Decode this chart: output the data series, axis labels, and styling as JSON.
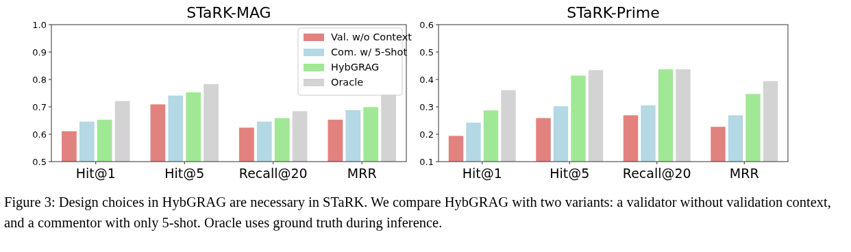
{
  "chart_data": [
    {
      "type": "bar",
      "title": "STaRK-MAG",
      "categories": [
        "Hit@1",
        "Hit@5",
        "Recall@20",
        "MRR"
      ],
      "ylim": [
        0.5,
        1.0
      ],
      "yticks": [
        {
          "value": 0.5,
          "label": "0.5"
        },
        {
          "value": 0.6,
          "label": "0.6"
        },
        {
          "value": 0.7,
          "label": "0.7"
        },
        {
          "value": 0.8,
          "label": "0.8"
        },
        {
          "value": 0.9,
          "label": "0.9"
        },
        {
          "value": 1.0,
          "label": "1.0"
        }
      ],
      "legend": "top right",
      "grid": false,
      "series": [
        {
          "name": "Val. w/o Context",
          "color": "#e2827f",
          "values": [
            0.611,
            0.709,
            0.624,
            0.653
          ]
        },
        {
          "name": "Com. w/ 5-Shot",
          "color": "#b4d8e4",
          "values": [
            0.646,
            0.741,
            0.646,
            0.688
          ]
        },
        {
          "name": "HybGRAG",
          "color": "#a1e896",
          "values": [
            0.653,
            0.753,
            0.659,
            0.699
          ]
        },
        {
          "name": "Oracle",
          "color": "#d3d3d3",
          "values": [
            0.721,
            0.783,
            0.684,
            0.748
          ]
        }
      ],
      "annotations": [
        "Figure 3: Design choices in HybGRAG are necessary in STaRK. We compare HybGRAG with two variants: a validator without validation context, and a commentor with only 5-shot. Oracle uses ground truth during inference."
      ]
    },
    {
      "type": "bar",
      "title": "STaRK-Prime",
      "categories": [
        "Hit@1",
        "Hit@5",
        "Recall@20",
        "MRR"
      ],
      "ylim": [
        0.1,
        0.6
      ],
      "yticks": [
        0.1,
        0.2,
        0.3,
        0.4,
        0.5,
        0.6
      ],
      "grid": false,
      "series": [
        {
          "color": "#e2827f",
          "values": [
            0.194,
            0.259,
            0.269,
            0.227
          ]
        },
        {
          "color": "#b4d8e4",
          "values": [
            0.242,
            0.302,
            0.305,
            0.269
          ]
        },
        {
          "color": "#a1e896",
          "values": [
            0.287,
            0.414,
            0.437,
            0.347
          ]
        },
        {
          "color": "#d3d3d3",
          "values": [
            0.361,
            0.434,
            0.437,
            0.394
          ]
        }
      ]
    }
  ]
}
